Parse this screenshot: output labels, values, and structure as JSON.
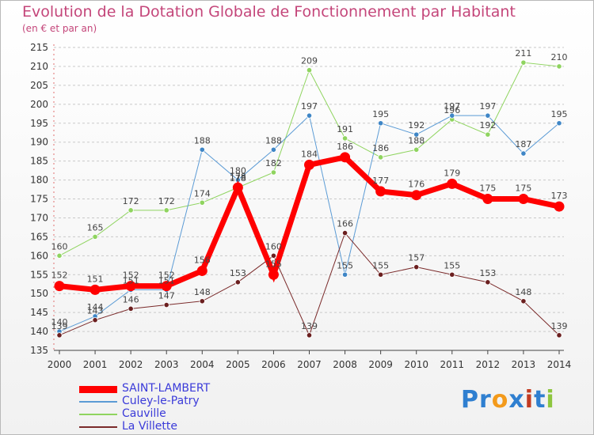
{
  "title": "Evolution de la Dotation Globale de Fonctionnement par Habitant",
  "subtitle": "(en € et par an)",
  "logo": {
    "text": "Proxiti",
    "colors": [
      "#2f7fd0",
      "#2f7fd0",
      "#f39a1b",
      "#2f7fd0",
      "#c23b22",
      "#2f7fd0",
      "#8ec63f"
    ]
  },
  "chart_data": {
    "type": "line",
    "title": "Evolution de la Dotation Globale de Fonctionnement par Habitant",
    "subtitle": "(en € et par an)",
    "categories": [
      "2000",
      "2001",
      "2002",
      "2003",
      "2004",
      "2005",
      "2006",
      "2007",
      "2008",
      "2009",
      "2010",
      "2011",
      "2012",
      "2013",
      "2014"
    ],
    "ylim": [
      135,
      215
    ],
    "yticks": [
      135,
      140,
      145,
      150,
      155,
      160,
      165,
      170,
      175,
      180,
      185,
      190,
      195,
      200,
      205,
      210,
      215
    ],
    "grid": "horizontal dashed",
    "legend_position": "bottom-left",
    "series": [
      {
        "name": "Cauville",
        "color": "#8fd45f",
        "marker": "#8fd45f",
        "width": 1,
        "values": [
          160,
          165,
          172,
          172,
          174,
          178,
          182,
          209,
          191,
          186,
          188,
          196,
          192,
          211,
          210
        ]
      },
      {
        "name": "Culey-le-Patry",
        "color": "#5b9bd5",
        "marker": "#3f86c6",
        "width": 1,
        "values": [
          140,
          144,
          151,
          151,
          188,
          180,
          188,
          197,
          155,
          195,
          192,
          197,
          197,
          187,
          195
        ]
      },
      {
        "name": "La Villette",
        "color": "#7a2a2a",
        "marker": "#6b1f1f",
        "width": 1,
        "values": [
          139,
          143,
          146,
          147,
          148,
          153,
          160,
          139,
          166,
          155,
          157,
          155,
          153,
          148,
          139
        ]
      },
      {
        "name": "SAINT-LAMBERT",
        "color": "#ff0000",
        "marker": "#ff0000",
        "width": 7,
        "values": [
          152,
          151,
          152,
          152,
          156,
          178,
          155,
          184,
          186,
          177,
          176,
          179,
          175,
          175,
          173
        ]
      }
    ]
  }
}
